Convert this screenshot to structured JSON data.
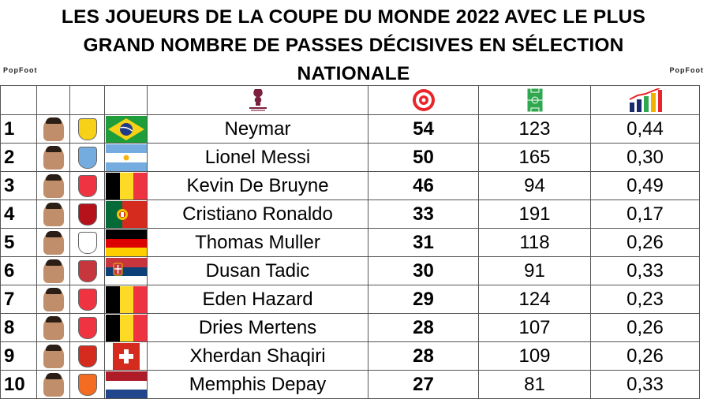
{
  "title": "LES JOUEURS DE LA COUPE DU MONDE 2022 AVEC LE PLUS\nGRAND NOMBRE DE PASSES DÉCISIVES EN SÉLECTION\nNATIONALE",
  "title_lines": [
    "LES JOUEURS DE LA COUPE DU MONDE 2022 AVEC LE PLUS",
    "GRAND NOMBRE DE PASSES DÉCISIVES EN SÉLECTION",
    "NATIONALE"
  ],
  "brand": "PopFoot",
  "header_icons": [
    "world-cup-logo",
    "target-icon",
    "pitch-icon",
    "bar-chart-icon"
  ],
  "colors": {
    "target": "#e8252b",
    "pitch": "#2fa84f",
    "chart_bars": [
      "#1a2a6c",
      "#2fa84f",
      "#f0b400",
      "#e8252b"
    ]
  },
  "rows": [
    {
      "rank": "1",
      "name": "Neymar",
      "assists": "54",
      "matches": "123",
      "ratio": "0,44",
      "country": "brazil"
    },
    {
      "rank": "2",
      "name": "Lionel Messi",
      "assists": "50",
      "matches": "165",
      "ratio": "0,30",
      "country": "argentina"
    },
    {
      "rank": "3",
      "name": "Kevin De Bruyne",
      "assists": "46",
      "matches": "94",
      "ratio": "0,49",
      "country": "belgium"
    },
    {
      "rank": "4",
      "name": "Cristiano Ronaldo",
      "assists": "33",
      "matches": "191",
      "ratio": "0,17",
      "country": "portugal"
    },
    {
      "rank": "5",
      "name": "Thomas Muller",
      "assists": "31",
      "matches": "118",
      "ratio": "0,26",
      "country": "germany"
    },
    {
      "rank": "6",
      "name": "Dusan Tadic",
      "assists": "30",
      "matches": "91",
      "ratio": "0,33",
      "country": "serbia"
    },
    {
      "rank": "7",
      "name": "Eden Hazard",
      "assists": "29",
      "matches": "124",
      "ratio": "0,23",
      "country": "belgium"
    },
    {
      "rank": "8",
      "name": "Dries Mertens",
      "assists": "28",
      "matches": "107",
      "ratio": "0,26",
      "country": "belgium"
    },
    {
      "rank": "9",
      "name": "Xherdan Shaqiri",
      "assists": "28",
      "matches": "109",
      "ratio": "0,26",
      "country": "switzerland"
    },
    {
      "rank": "10",
      "name": "Memphis Depay",
      "assists": "27",
      "matches": "81",
      "ratio": "0,33",
      "country": "netherlands"
    }
  ]
}
